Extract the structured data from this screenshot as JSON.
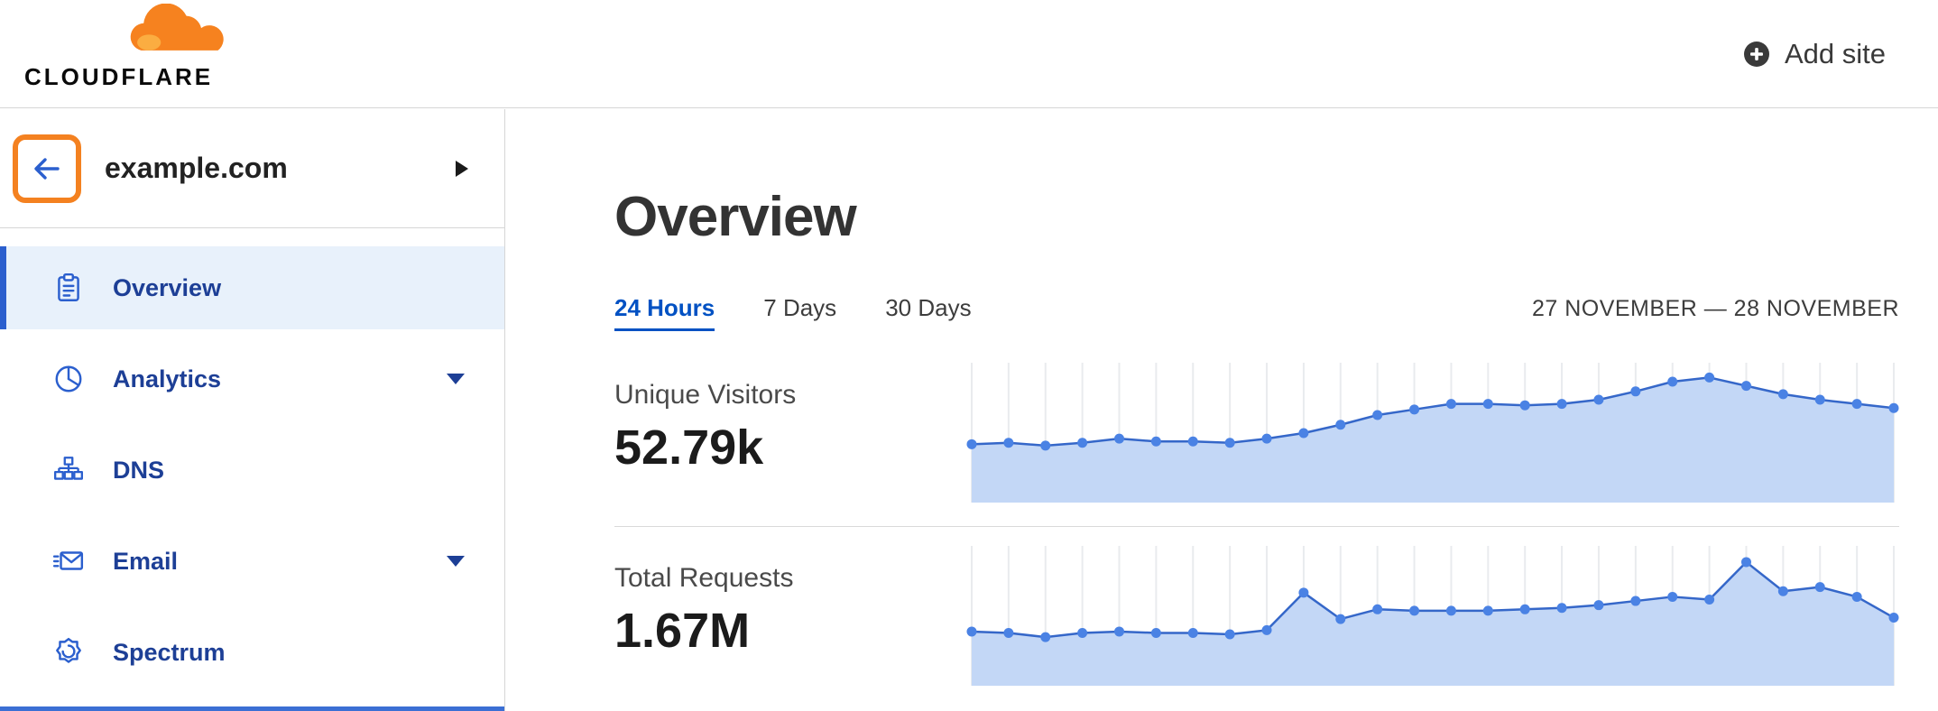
{
  "header": {
    "brand": "CLOUDFLARE",
    "add_site_label": "Add site"
  },
  "sidebar": {
    "site_name": "example.com",
    "items": [
      {
        "label": "Overview",
        "icon": "clipboard-icon",
        "active": true,
        "caret": false
      },
      {
        "label": "Analytics",
        "icon": "pie-chart-icon",
        "active": false,
        "caret": true
      },
      {
        "label": "DNS",
        "icon": "sitemap-icon",
        "active": false,
        "caret": false
      },
      {
        "label": "Email",
        "icon": "envelope-icon",
        "active": false,
        "caret": true
      },
      {
        "label": "Spectrum",
        "icon": "spectrum-icon",
        "active": false,
        "caret": false
      }
    ]
  },
  "main": {
    "title": "Overview",
    "tabs": [
      {
        "label": "24 Hours",
        "active": true
      },
      {
        "label": "7 Days",
        "active": false
      },
      {
        "label": "30 Days",
        "active": false
      }
    ],
    "date_range": "27 NOVEMBER — 28 NOVEMBER",
    "metrics": [
      {
        "label": "Unique Visitors",
        "value": "52.79k"
      },
      {
        "label": "Total Requests",
        "value": "1.67M"
      }
    ]
  },
  "colors": {
    "brand_orange": "#f6821f",
    "brand_orange_light": "#fbad41",
    "highlight_orange": "#f48120",
    "link_blue": "#0051c3",
    "sidebar_icon_blue": "#2b5fce",
    "sidebar_label_blue": "#1d3f96",
    "active_item_bg": "#e8f1fb",
    "chart_fill": "#c3d7f6",
    "chart_line": "#3567c9",
    "chart_dot": "#4a82e4",
    "chart_grid": "#e9ebee"
  },
  "chart_data": [
    {
      "type": "area",
      "title": "Unique Visitors",
      "value_label": "52.79k",
      "xlabel": "",
      "ylabel": "",
      "x_tick_labels": [],
      "y_scale": "relative 0-100 (no axis labels shown in UI)",
      "grid": true,
      "legend": false,
      "values": [
        42,
        43,
        41,
        43,
        46,
        44,
        44,
        43,
        46,
        50,
        56,
        63,
        67,
        71,
        71,
        70,
        71,
        74,
        80,
        87,
        90,
        84,
        78,
        74,
        71,
        68
      ]
    },
    {
      "type": "area",
      "title": "Total Requests",
      "value_label": "1.67M",
      "xlabel": "",
      "ylabel": "",
      "x_tick_labels": [],
      "y_scale": "relative 0-100 (no axis labels shown in UI)",
      "grid": true,
      "legend": false,
      "values": [
        39,
        38,
        35,
        38,
        39,
        38,
        38,
        37,
        40,
        67,
        48,
        55,
        54,
        54,
        54,
        55,
        56,
        58,
        61,
        64,
        62,
        89,
        68,
        71,
        64,
        49
      ]
    }
  ]
}
